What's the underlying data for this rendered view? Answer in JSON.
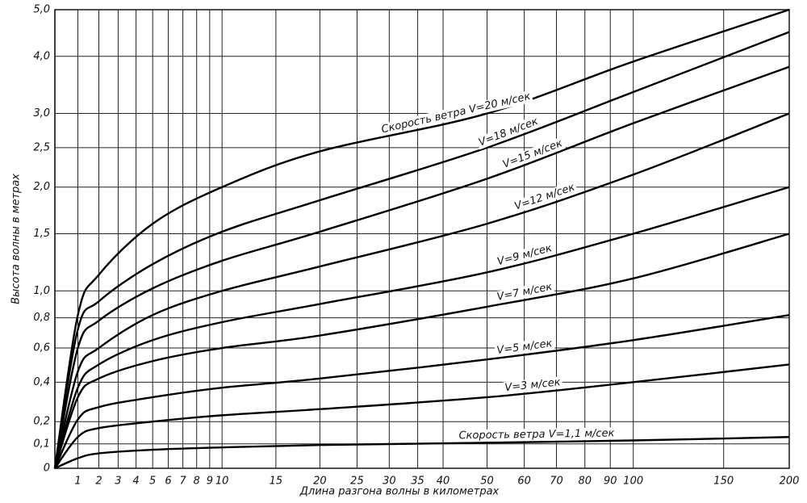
{
  "chart_data": {
    "type": "line",
    "y_label": "Высота волны в метрах",
    "x_label": "Длина разгона волны в километрах",
    "x": [
      0,
      1,
      2,
      5,
      10,
      20,
      50,
      100,
      200
    ],
    "series": [
      {
        "name": "Скорость ветра V=20 м/сек",
        "color": "#000000",
        "values": [
          0,
          0.82,
          1.13,
          1.6,
          2.0,
          2.45,
          3.0,
          3.9,
          5.0
        ]
      },
      {
        "name": "V=18 м/сек",
        "color": "#000000",
        "values": [
          0,
          0.72,
          0.92,
          1.22,
          1.52,
          1.85,
          2.5,
          3.35,
          4.5
        ]
      },
      {
        "name": "V=15 м/сек",
        "color": "#000000",
        "values": [
          0,
          0.6,
          0.78,
          1.02,
          1.25,
          1.52,
          2.1,
          2.85,
          3.8
        ]
      },
      {
        "name": "V=12 м/сек",
        "color": "#000000",
        "values": [
          0,
          0.46,
          0.6,
          0.82,
          1.0,
          1.2,
          1.6,
          2.15,
          3.0
        ]
      },
      {
        "name": "V=9 м/сек",
        "color": "#000000",
        "values": [
          0,
          0.37,
          0.5,
          0.65,
          0.77,
          0.9,
          1.15,
          1.5,
          2.0
        ]
      },
      {
        "name": "V=7 м/сек",
        "color": "#000000",
        "values": [
          0,
          0.32,
          0.42,
          0.52,
          0.6,
          0.68,
          0.88,
          1.1,
          1.5
        ]
      },
      {
        "name": "V=5 м/сек",
        "color": "#000000",
        "values": [
          0,
          0.21,
          0.27,
          0.32,
          0.37,
          0.42,
          0.53,
          0.65,
          0.82
        ]
      },
      {
        "name": "V=3 м/сек",
        "color": "#000000",
        "values": [
          0,
          0.13,
          0.17,
          0.2,
          0.23,
          0.26,
          0.32,
          0.4,
          0.5
        ]
      },
      {
        "name": "Скорость ветра V=1,1 м/сек",
        "color": "#000000",
        "values": [
          0,
          0.04,
          0.06,
          0.075,
          0.085,
          0.095,
          0.105,
          0.115,
          0.13
        ]
      }
    ],
    "xlim": [
      0,
      200
    ],
    "xticks": [
      1,
      2,
      3,
      4,
      5,
      6,
      7,
      8,
      9,
      10,
      15,
      20,
      25,
      30,
      35,
      40,
      50,
      60,
      70,
      80,
      90,
      100,
      150,
      200
    ],
    "ylim": [
      0,
      5
    ],
    "yticks": [
      0,
      {
        "value": 0.1,
        "label": "0,1"
      },
      {
        "value": 0.2,
        "label": "0,2"
      },
      {
        "value": 0.4,
        "label": "0,4"
      },
      {
        "value": 0.6,
        "label": "0,6"
      },
      {
        "value": 0.8,
        "label": "0,8"
      },
      {
        "value": 1.0,
        "label": "1,0"
      },
      {
        "value": 1.5,
        "label": "1,5"
      },
      {
        "value": 2.0,
        "label": "2,0"
      },
      {
        "value": 2.5,
        "label": "2,5"
      },
      {
        "value": 3.0,
        "label": "3,0"
      },
      {
        "value": 4.0,
        "label": "4,0"
      },
      {
        "value": 5.0,
        "label": "5,0"
      }
    ],
    "grid": true
  }
}
